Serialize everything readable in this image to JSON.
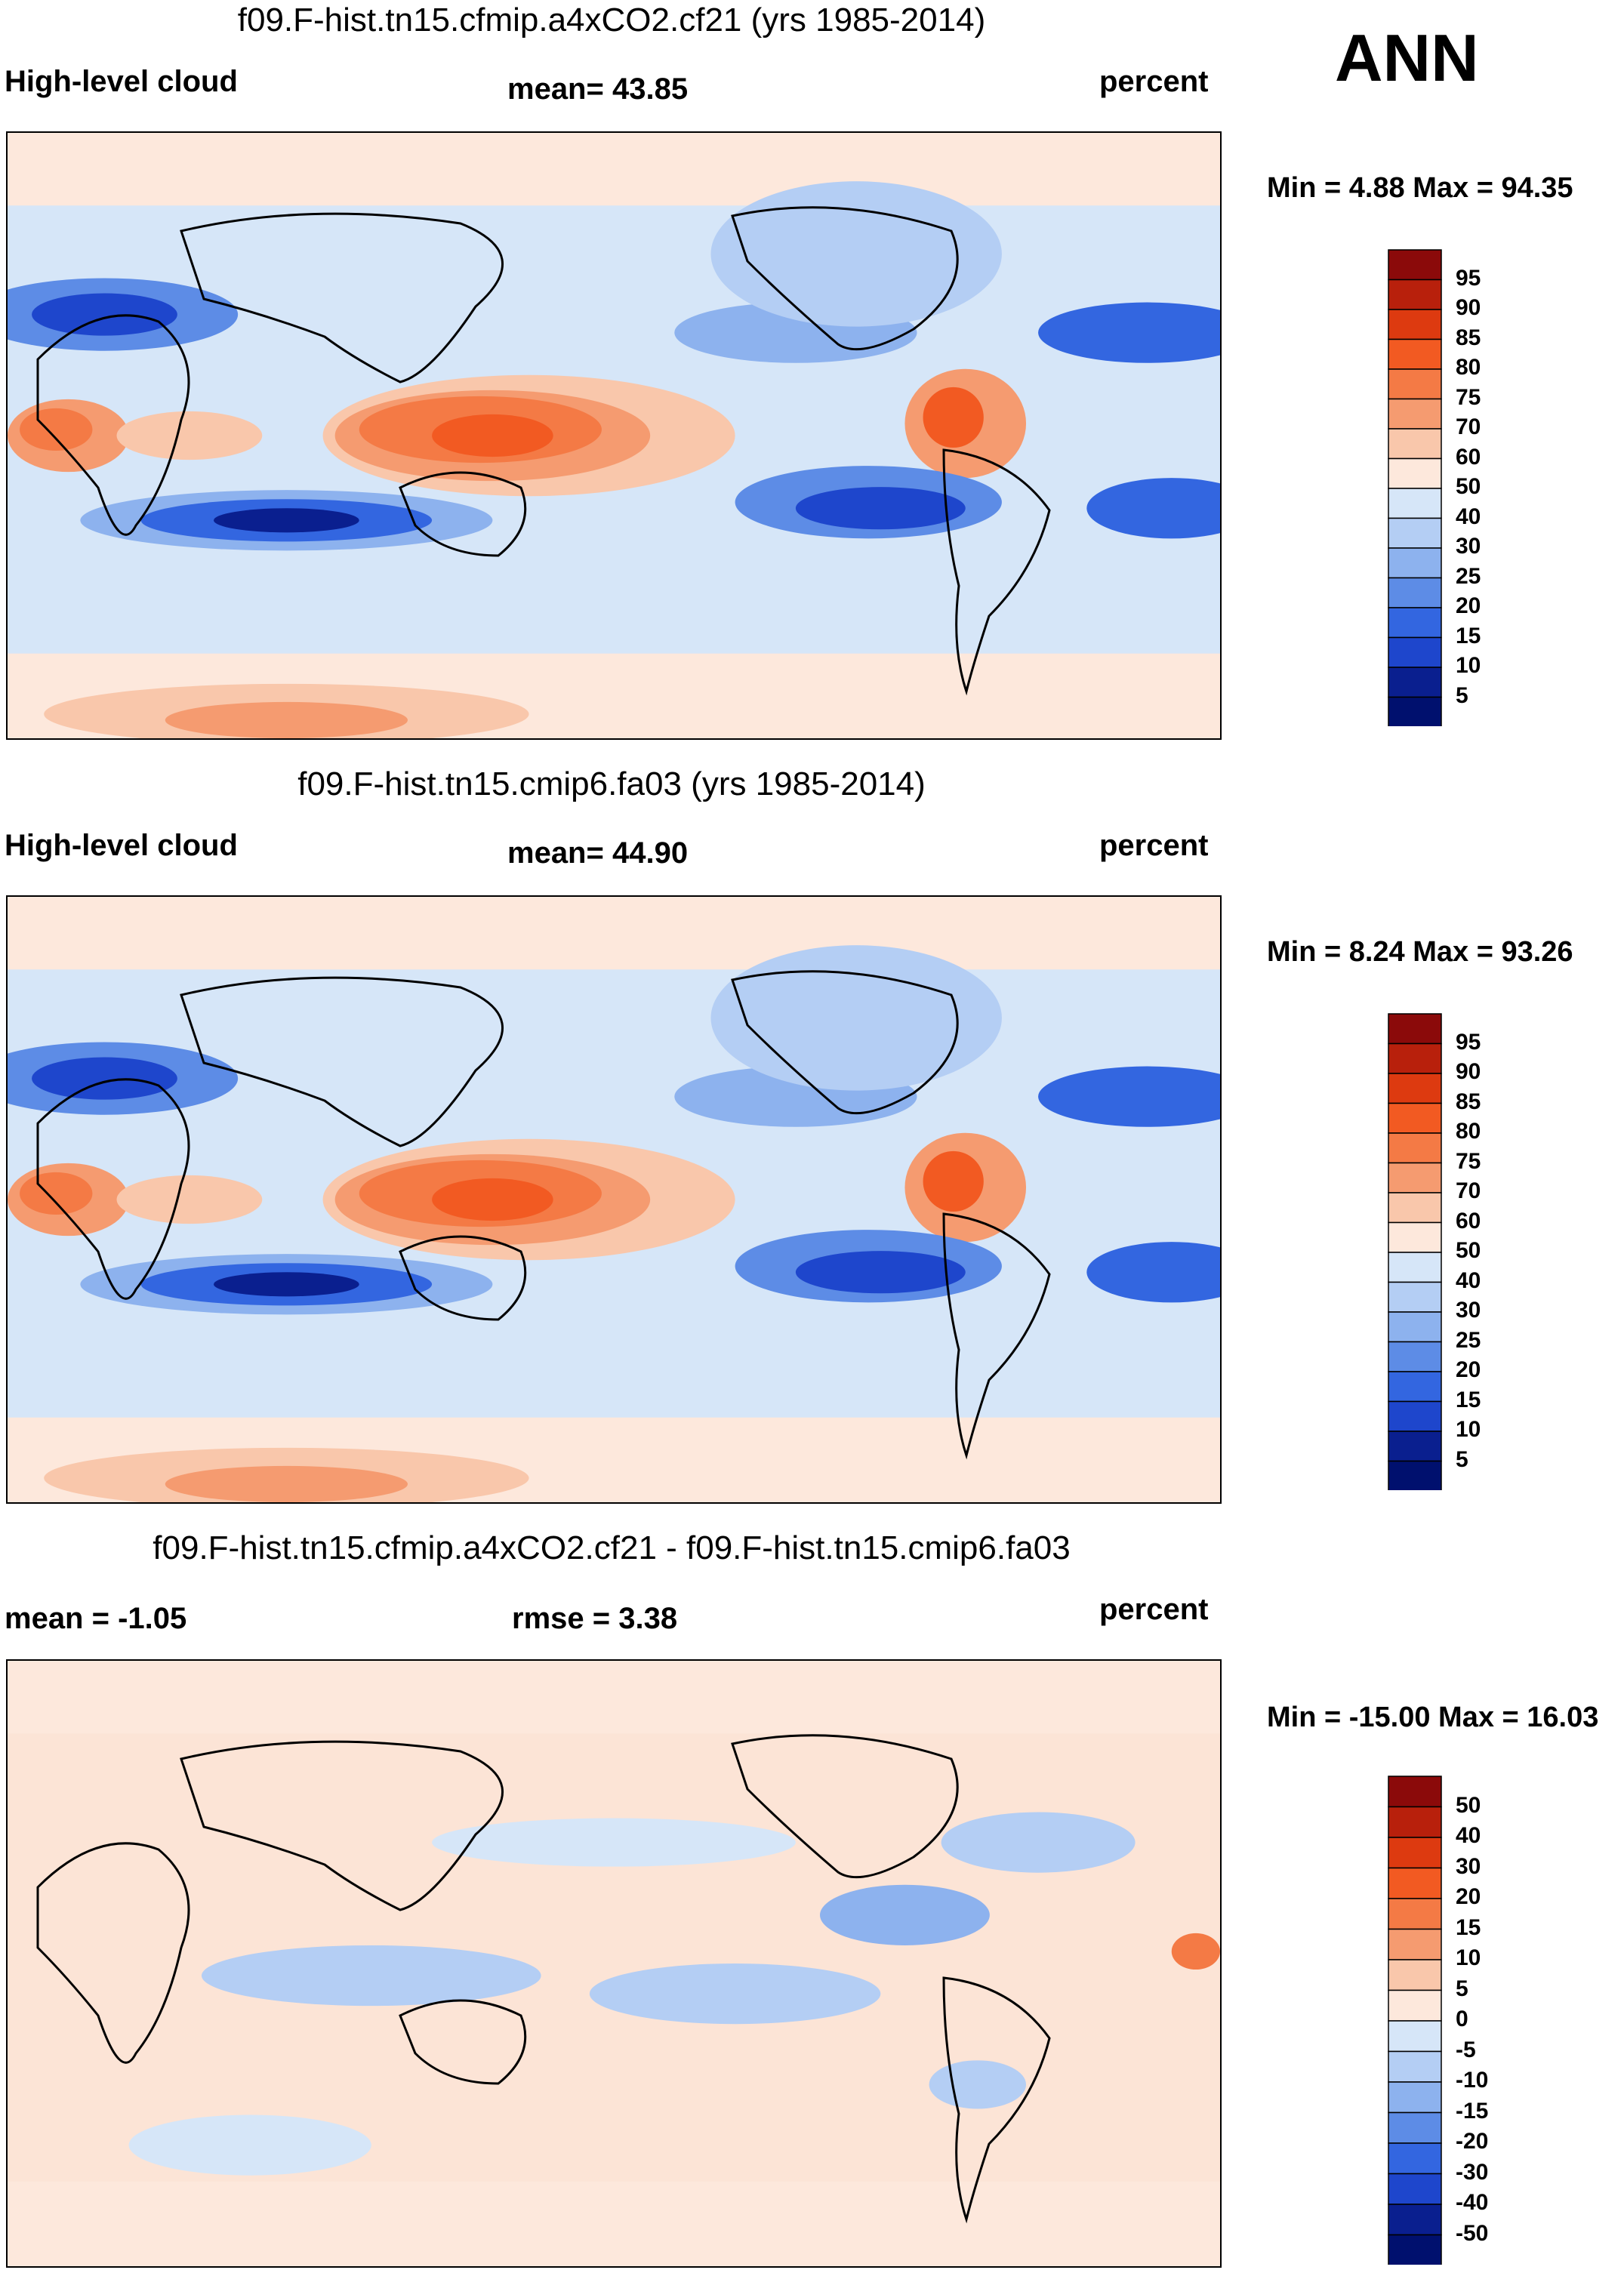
{
  "season": "ANN",
  "panels": [
    {
      "title": "f09.F-hist.tn15.cfmip.a4xCO2.cf21 (yrs 1985-2014)",
      "left_label": "High-level cloud",
      "center_label": "mean=  43.85",
      "right_label": "percent",
      "minmax": "Min =   4.88 Max =  94.35",
      "colorbar_labels": [
        "95",
        "90",
        "85",
        "80",
        "75",
        "70",
        "60",
        "50",
        "40",
        "30",
        "25",
        "20",
        "15",
        "10",
        "5"
      ]
    },
    {
      "title": "f09.F-hist.tn15.cmip6.fa03 (yrs 1985-2014)",
      "left_label": "High-level cloud",
      "center_label": "mean=  44.90",
      "right_label": "percent",
      "minmax": "Min =   8.24 Max =  93.26",
      "colorbar_labels": [
        "95",
        "90",
        "85",
        "80",
        "75",
        "70",
        "60",
        "50",
        "40",
        "30",
        "25",
        "20",
        "15",
        "10",
        "5"
      ]
    },
    {
      "title": "f09.F-hist.tn15.cfmip.a4xCO2.cf21 - f09.F-hist.tn15.cmip6.fa03",
      "left_label": "mean =  -1.05",
      "center_label": "rmse =    3.38",
      "right_label": "percent",
      "minmax": "Min = -15.00 Max =  16.03",
      "colorbar_labels": [
        "50",
        "40",
        "30",
        "20",
        "15",
        "10",
        "5",
        "0",
        "-5",
        "-10",
        "-15",
        "-20",
        "-30",
        "-40",
        "-50"
      ]
    }
  ],
  "chart_data": [
    {
      "type": "heatmap",
      "title": "f09.F-hist.tn15.cfmip.a4xCO2.cf21 (yrs 1985-2014)",
      "variable": "High-level cloud",
      "units": "percent",
      "mean": 43.85,
      "min": 4.88,
      "max": 94.35,
      "contour_levels": [
        5,
        10,
        15,
        20,
        25,
        30,
        40,
        50,
        60,
        70,
        75,
        80,
        85,
        90,
        95
      ]
    },
    {
      "type": "heatmap",
      "title": "f09.F-hist.tn15.cmip6.fa03 (yrs 1985-2014)",
      "variable": "High-level cloud",
      "units": "percent",
      "mean": 44.9,
      "min": 8.24,
      "max": 93.26,
      "contour_levels": [
        5,
        10,
        15,
        20,
        25,
        30,
        40,
        50,
        60,
        70,
        75,
        80,
        85,
        90,
        95
      ]
    },
    {
      "type": "heatmap",
      "title": "f09.F-hist.tn15.cfmip.a4xCO2.cf21 - f09.F-hist.tn15.cmip6.fa03",
      "units": "percent",
      "mean": -1.05,
      "rmse": 3.38,
      "min": -15.0,
      "max": 16.03,
      "contour_levels": [
        -50,
        -40,
        -30,
        -20,
        -15,
        -10,
        -5,
        0,
        5,
        10,
        15,
        20,
        30,
        40,
        50
      ]
    }
  ],
  "colors": {
    "scale": [
      "#8b0a0a",
      "#b8200c",
      "#dd3a10",
      "#f25a22",
      "#f47a45",
      "#f59b70",
      "#f9c7ab",
      "#fde8dc",
      "#d6e6f8",
      "#b4cef4",
      "#8db2ee",
      "#5d8ce6",
      "#3366e0",
      "#1e46cc",
      "#0a1f8f",
      "#00106e"
    ],
    "neutral_pos": "#fce4d6",
    "neutral_neg": "#d9e7f8"
  }
}
